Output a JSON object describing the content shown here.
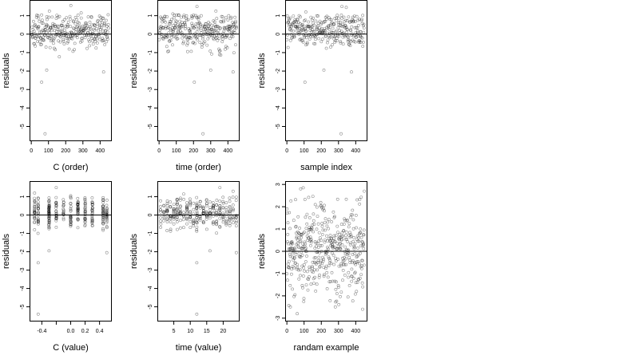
{
  "chart_data": [
    {
      "type": "scatter",
      "id": "c-order",
      "xlabel": "C (order)",
      "ylabel": "residuals",
      "xlim": [
        -10,
        468
      ],
      "ylim": [
        -5.8,
        1.85
      ],
      "xticks": [
        {
          "v": 0,
          "label": "0"
        },
        {
          "v": 100,
          "label": "100"
        },
        {
          "v": 200,
          "label": "200"
        },
        {
          "v": 300,
          "label": "300"
        },
        {
          "v": 400,
          "label": "400"
        }
      ],
      "yticks": [
        {
          "v": -5,
          "label": "-5"
        },
        {
          "v": -4,
          "label": "-4"
        },
        {
          "v": -3,
          "label": "-3"
        },
        {
          "v": -2,
          "label": "-2"
        },
        {
          "v": -1,
          "label": "-1"
        },
        {
          "v": 0,
          "label": "0"
        },
        {
          "v": 1,
          "label": "1"
        }
      ],
      "hline": 0,
      "grid": false,
      "gen": {
        "mode": "order",
        "seed": 11
      },
      "points": [
        [
          60,
          -2.6
        ],
        [
          90,
          -1.95
        ],
        [
          420,
          -2.05
        ],
        [
          80,
          -5.4
        ],
        [
          105,
          1.25
        ],
        [
          290,
          1.15
        ],
        [
          230,
          1.55
        ]
      ]
    },
    {
      "type": "scatter",
      "id": "time-order",
      "xlabel": "time (order)",
      "ylabel": "residuals",
      "xlim": [
        -10,
        468
      ],
      "ylim": [
        -5.8,
        1.85
      ],
      "xticks": [
        {
          "v": 0,
          "label": "0"
        },
        {
          "v": 100,
          "label": "100"
        },
        {
          "v": 200,
          "label": "200"
        },
        {
          "v": 300,
          "label": "300"
        },
        {
          "v": 400,
          "label": "400"
        }
      ],
      "yticks": [
        {
          "v": -5,
          "label": "-5"
        },
        {
          "v": -4,
          "label": "-4"
        },
        {
          "v": -3,
          "label": "-3"
        },
        {
          "v": -2,
          "label": "-2"
        },
        {
          "v": -1,
          "label": "-1"
        },
        {
          "v": 0,
          "label": "0"
        },
        {
          "v": 1,
          "label": "1"
        }
      ],
      "hline": 0,
      "grid": false,
      "gen": {
        "mode": "order",
        "seed": 23
      },
      "points": [
        [
          205,
          -2.6
        ],
        [
          300,
          -1.95
        ],
        [
          430,
          -2.05
        ],
        [
          255,
          -5.4
        ],
        [
          220,
          1.5
        ],
        [
          330,
          1.25
        ],
        [
          80,
          1.1
        ]
      ]
    },
    {
      "type": "scatter",
      "id": "sample-index",
      "xlabel": "sample index",
      "ylabel": "residuals",
      "xlim": [
        -10,
        468
      ],
      "ylim": [
        -5.8,
        1.85
      ],
      "xticks": [
        {
          "v": 0,
          "label": "0"
        },
        {
          "v": 100,
          "label": "100"
        },
        {
          "v": 200,
          "label": "200"
        },
        {
          "v": 300,
          "label": "300"
        },
        {
          "v": 400,
          "label": "400"
        }
      ],
      "yticks": [
        {
          "v": -5,
          "label": "-5"
        },
        {
          "v": -4,
          "label": "-4"
        },
        {
          "v": -3,
          "label": "-3"
        },
        {
          "v": -2,
          "label": "-2"
        },
        {
          "v": -1,
          "label": "-1"
        },
        {
          "v": 0,
          "label": "0"
        },
        {
          "v": 1,
          "label": "1"
        }
      ],
      "hline": 0,
      "grid": false,
      "gen": {
        "mode": "order",
        "seed": 37
      },
      "points": [
        [
          105,
          -2.6
        ],
        [
          215,
          -1.95
        ],
        [
          375,
          -2.05
        ],
        [
          315,
          -5.4
        ],
        [
          320,
          1.5
        ],
        [
          345,
          1.45
        ],
        [
          110,
          1.2
        ]
      ]
    },
    {
      "type": "scatter",
      "id": "c-value",
      "xlabel": "C (value)",
      "ylabel": "residuals",
      "xlim": [
        -0.57,
        0.57
      ],
      "ylim": [
        -5.8,
        1.85
      ],
      "xticks": [
        {
          "v": -0.4,
          "label": "-0.4"
        },
        {
          "v": -0.2,
          "label": ""
        },
        {
          "v": 0.0,
          "label": "0.0"
        },
        {
          "v": 0.2,
          "label": "0.2"
        },
        {
          "v": 0.4,
          "label": "0.4"
        }
      ],
      "yticks": [
        {
          "v": -5,
          "label": "-5"
        },
        {
          "v": -4,
          "label": "-4"
        },
        {
          "v": -3,
          "label": "-3"
        },
        {
          "v": -2,
          "label": "-2"
        },
        {
          "v": -1,
          "label": "-1"
        },
        {
          "v": 0,
          "label": "0"
        },
        {
          "v": 1,
          "label": "1"
        }
      ],
      "hline": 0,
      "grid": false,
      "gen": {
        "mode": "columns",
        "seed": 41,
        "columns": [
          -0.5,
          -0.45,
          -0.3,
          -0.2,
          -0.1,
          0.0,
          0.1,
          0.2,
          0.3,
          0.45,
          0.5
        ]
      },
      "points": [
        [
          -0.45,
          -2.6
        ],
        [
          -0.3,
          -1.95
        ],
        [
          0.5,
          -2.05
        ],
        [
          -0.45,
          -5.4
        ],
        [
          -0.2,
          1.5
        ],
        [
          0.0,
          1.05
        ],
        [
          -0.5,
          1.2
        ]
      ]
    },
    {
      "type": "scatter",
      "id": "time-value",
      "xlabel": "time (value)",
      "ylabel": "residuals",
      "xlim": [
        0,
        25
      ],
      "ylim": [
        -5.8,
        1.85
      ],
      "xticks": [
        {
          "v": 5,
          "label": "5"
        },
        {
          "v": 10,
          "label": "10"
        },
        {
          "v": 15,
          "label": "15"
        },
        {
          "v": 20,
          "label": "20"
        }
      ],
      "yticks": [
        {
          "v": -5,
          "label": "-5"
        },
        {
          "v": -4,
          "label": "-4"
        },
        {
          "v": -3,
          "label": "-3"
        },
        {
          "v": -2,
          "label": "-2"
        },
        {
          "v": -1,
          "label": "-1"
        },
        {
          "v": 0,
          "label": "0"
        },
        {
          "v": 1,
          "label": "1"
        }
      ],
      "hline": 0,
      "grid": false,
      "gen": {
        "mode": "columns",
        "seed": 53,
        "columns": [
          1,
          2,
          3,
          4,
          5,
          6,
          7,
          8,
          9,
          10,
          11,
          12,
          12,
          13,
          14,
          15,
          16,
          17,
          18,
          19,
          20,
          21,
          22,
          23,
          24
        ]
      },
      "points": [
        [
          12,
          -2.6
        ],
        [
          16,
          -1.95
        ],
        [
          24,
          -2.05
        ],
        [
          12,
          -5.4
        ],
        [
          19,
          1.5
        ],
        [
          23,
          1.3
        ],
        [
          8,
          1.15
        ]
      ]
    },
    {
      "type": "scatter",
      "id": "random-example",
      "xlabel": "randam example",
      "ylabel": "residuals",
      "xlim": [
        -10,
        468
      ],
      "ylim": [
        -3.15,
        3.15
      ],
      "xticks": [
        {
          "v": 0,
          "label": "0"
        },
        {
          "v": 100,
          "label": "100"
        },
        {
          "v": 200,
          "label": "200"
        },
        {
          "v": 300,
          "label": "300"
        },
        {
          "v": 400,
          "label": "400"
        }
      ],
      "yticks": [
        {
          "v": -3,
          "label": "-3"
        },
        {
          "v": -2,
          "label": "-2"
        },
        {
          "v": -1,
          "label": "-1"
        },
        {
          "v": 0,
          "label": "0"
        },
        {
          "v": 1,
          "label": "1"
        },
        {
          "v": 2,
          "label": "2"
        },
        {
          "v": 3,
          "label": "3"
        }
      ],
      "hline": 0,
      "grid": false,
      "gen": {
        "mode": "random",
        "seed": 67
      },
      "points": [
        [
          80,
          2.8
        ],
        [
          95,
          2.85
        ],
        [
          450,
          2.7
        ],
        [
          20,
          -2.5
        ],
        [
          60,
          -2.8
        ],
        [
          440,
          -2.6
        ]
      ]
    }
  ]
}
